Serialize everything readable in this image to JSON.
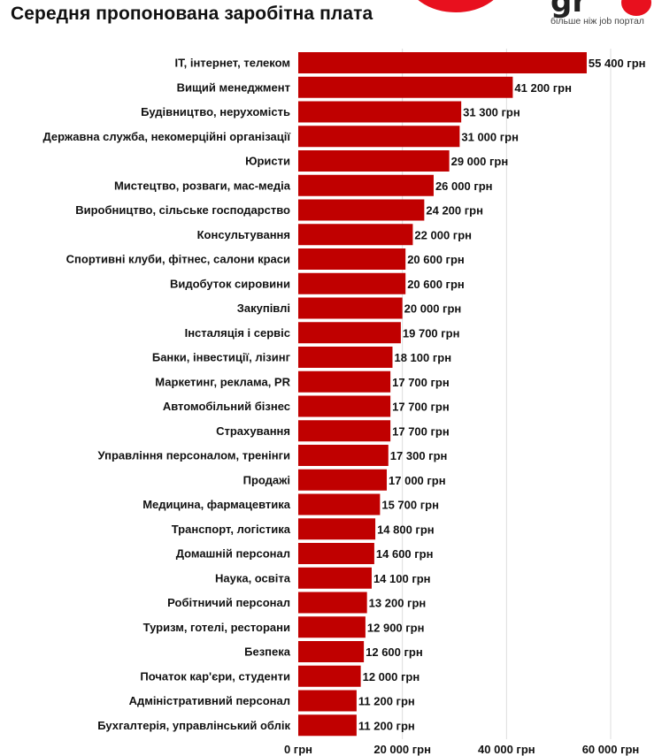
{
  "header": {
    "title": "Середня пропонована заробітна плата",
    "logo_text": "gr",
    "logo_tagline": "більше ніж job портал"
  },
  "colors": {
    "bar": "#c00000",
    "brand": "#e8101e",
    "grid": "#dddddd"
  },
  "chart_data": {
    "type": "bar",
    "orientation": "horizontal",
    "title": "Середня пропонована заробітна плата",
    "xlabel": "",
    "ylabel": "",
    "xlim": [
      0,
      60000
    ],
    "grid": true,
    "x_ticks": [
      {
        "value": 0,
        "label": "0 грн"
      },
      {
        "value": 20000,
        "label": "20 000 грн"
      },
      {
        "value": 40000,
        "label": "40 000 грн"
      },
      {
        "value": 60000,
        "label": "60 000 грн"
      }
    ],
    "categories": [
      "IT, інтернет, телеком",
      "Вищий менеджмент",
      "Будівництво, нерухомість",
      "Державна служба, некомерційні організації",
      "Юристи",
      "Мистецтво, розваги, мас-медіа",
      "Виробництво, сільське господарство",
      "Консультування",
      "Спортивні клуби, фітнес, салони краси",
      "Видобуток сировини",
      "Закупівлі",
      "Інсталяція і сервіс",
      "Банки, інвестиції, лізинг",
      "Маркетинг, реклама, PR",
      "Автомобільний бізнес",
      "Страхування",
      "Управління персоналом, тренінги",
      "Продажі",
      "Медицина, фармацевтика",
      "Транспорт, логістика",
      "Домашній персонал",
      "Наука, освіта",
      "Робітничий персонал",
      "Туризм, готелі, ресторани",
      "Безпека",
      "Початок кар'єри, студенти",
      "Адміністративний персонал",
      "Бухгалтерія, управлінський облік"
    ],
    "values": [
      55400,
      41200,
      31300,
      31000,
      29000,
      26000,
      24200,
      22000,
      20600,
      20600,
      20000,
      19700,
      18100,
      17700,
      17700,
      17700,
      17300,
      17000,
      15700,
      14800,
      14600,
      14100,
      13200,
      12900,
      12600,
      12000,
      11200,
      11200
    ],
    "value_labels": [
      "55 400 грн",
      "41 200 грн",
      "31 300 грн",
      "31 000 грн",
      "29 000 грн",
      "26 000 грн",
      "24 200 грн",
      "22 000 грн",
      "20 600 грн",
      "20 600 грн",
      "20 000 грн",
      "19 700 грн",
      "18 100 грн",
      "17 700 грн",
      "17 700 грн",
      "17 700 грн",
      "17 300 грн",
      "17 000 грн",
      "15 700 грн",
      "14 800 грн",
      "14 600 грн",
      "14 100 грн",
      "13 200 грн",
      "12 900 грн",
      "12 600 грн",
      "12 000 грн",
      "11 200  грн",
      "11 200 грн"
    ]
  }
}
